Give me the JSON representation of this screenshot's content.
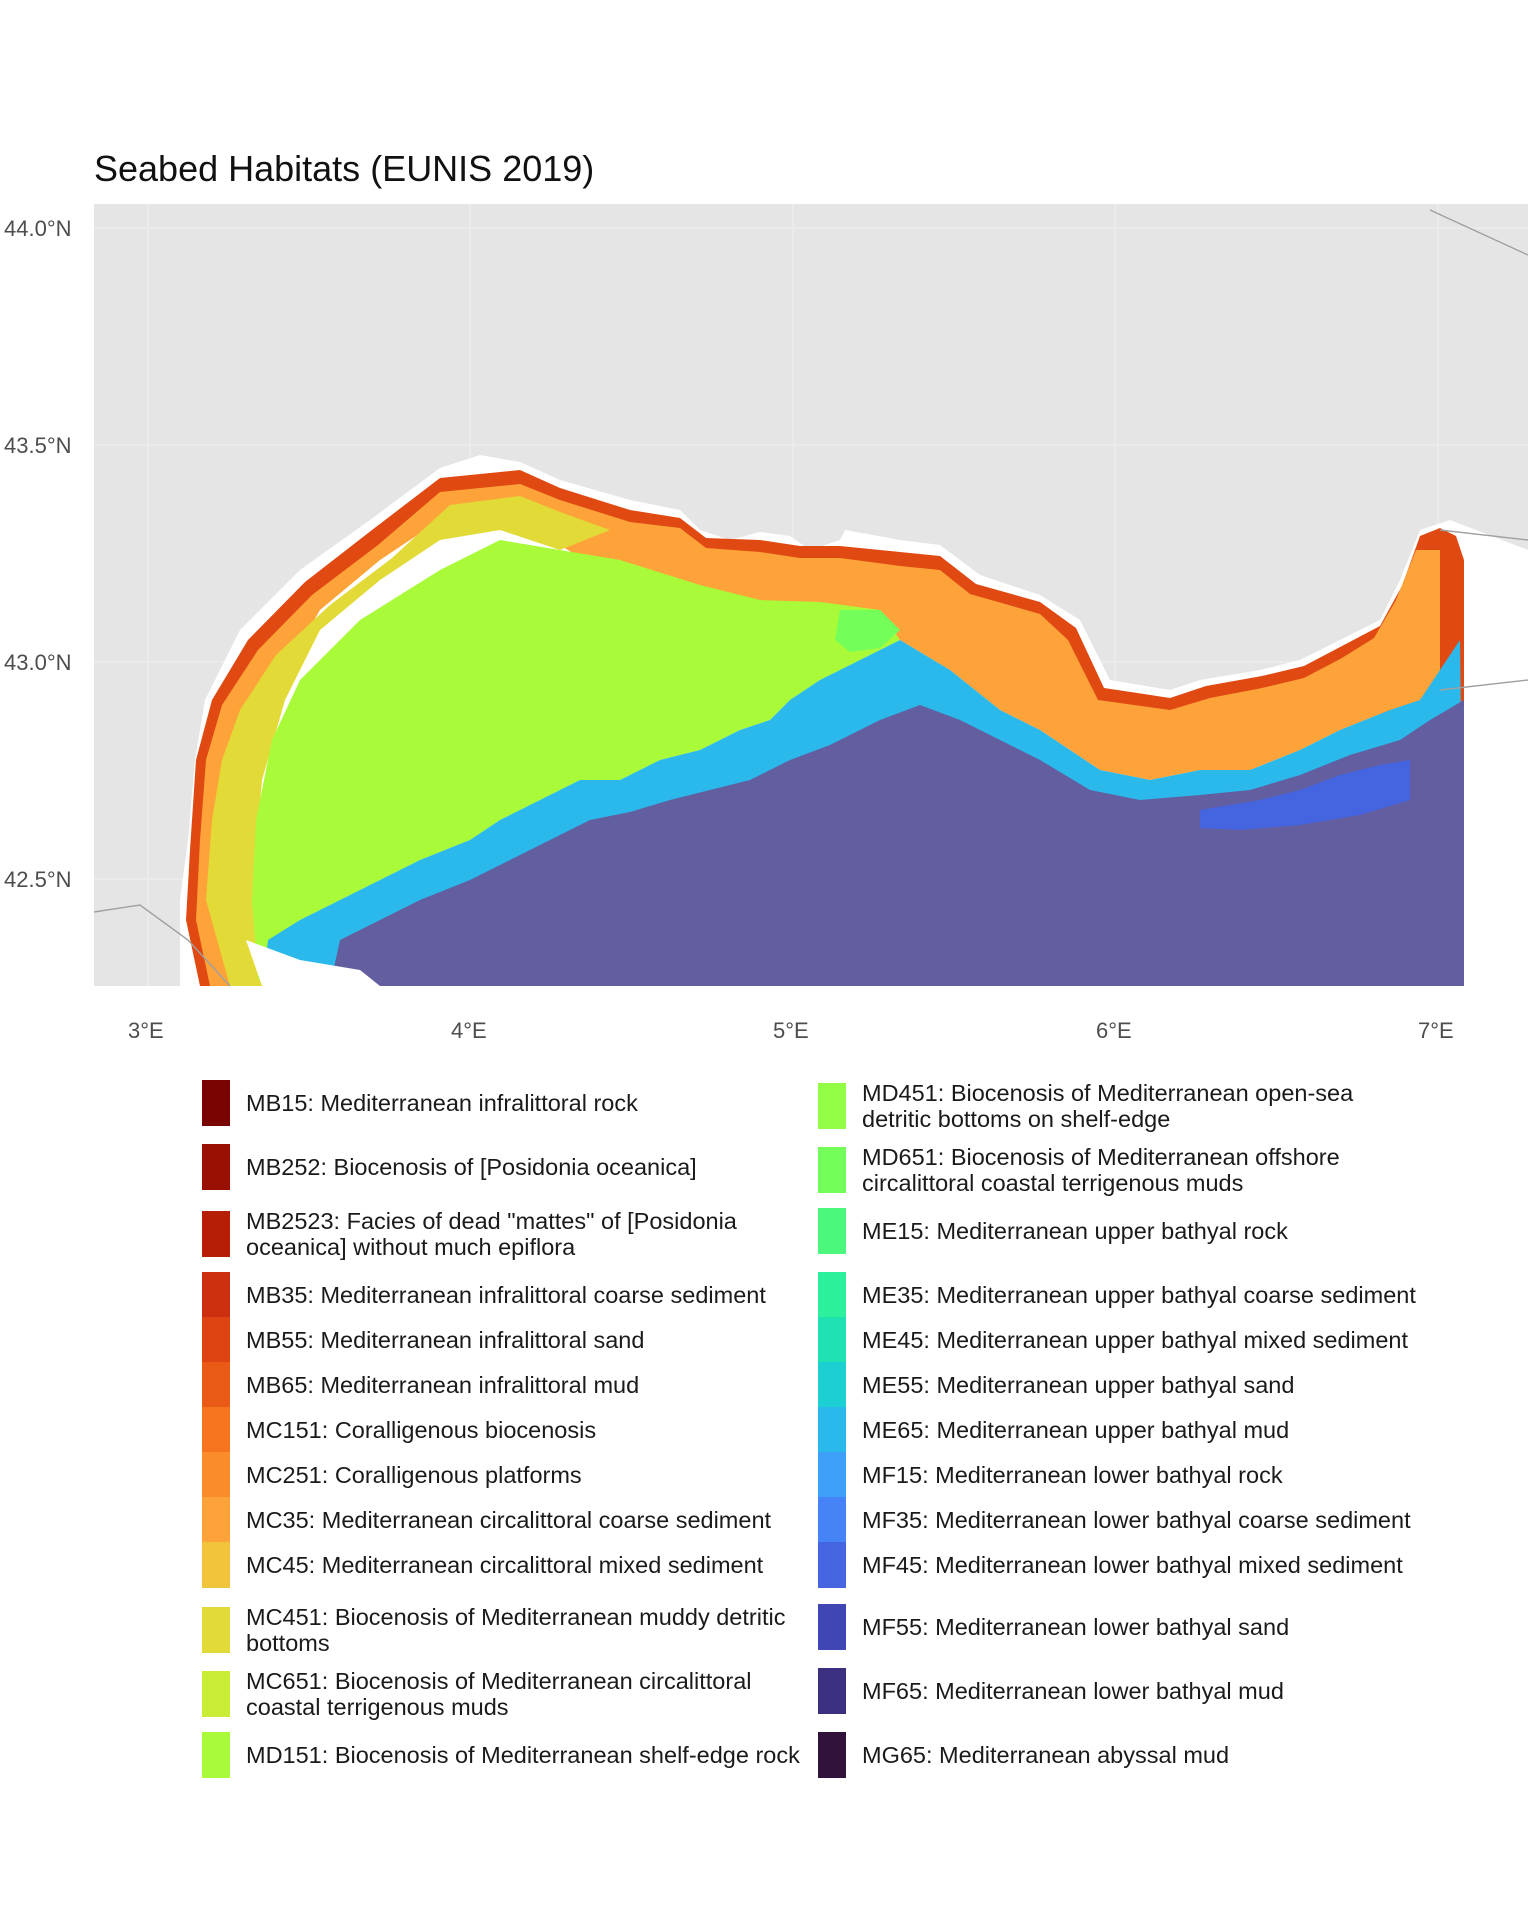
{
  "title": "Seabed Habitats (EUNIS 2019)",
  "map": {
    "y_axis_labels": [
      "44.0°N",
      "43.5°N",
      "43.0°N",
      "42.5°N"
    ],
    "x_axis_labels": [
      "3°E",
      "4°E",
      "5°E",
      "6°E",
      "7°E"
    ],
    "colors": {
      "background": "#ffffff",
      "land": "#e5e5e5",
      "graticule": "#ebebeb",
      "coast_line": "#a0a0a0"
    }
  },
  "legend": {
    "left_column": [
      {
        "label": "MB15: Mediterranean infralittoral rock",
        "color": "#7a0403"
      },
      {
        "label": "MB252: Biocenosis of [Posidonia oceanica]",
        "color": "#9a1002"
      },
      {
        "label": "MB2523: Facies of dead \"mattes\" of [Posidonia oceanica] without much epiflora",
        "color": "#b61f05"
      },
      {
        "label": "MB35: Mediterranean infralittoral coarse sediment",
        "color": "#cb2f0d"
      },
      {
        "label": "MB55: Mediterranean infralittoral sand",
        "color": "#dd4411"
      },
      {
        "label": "MB65: Mediterranean infralittoral mud",
        "color": "#ea5a17"
      },
      {
        "label": "MC151: Coralligenous biocenosis",
        "color": "#f57420"
      },
      {
        "label": "MC251: Coralligenous platforms",
        "color": "#fb8c2b"
      },
      {
        "label": "MC35: Mediterranean circalittoral coarse sediment",
        "color": "#fda33a"
      },
      {
        "label": "MC45: Mediterranean circalittoral mixed sediment",
        "color": "#f2c43b"
      },
      {
        "label": "MC451: Biocenosis of Mediterranean muddy detritic bottoms",
        "color": "#e2da36"
      },
      {
        "label": "MC651: Biocenosis of Mediterranean circalittoral coastal terrigenous muds",
        "color": "#c9ec34"
      },
      {
        "label": "MD151: Biocenosis of Mediterranean shelf-edge rock",
        "color": "#a9fb39"
      }
    ],
    "right_column": [
      {
        "label": "MD451: Biocenosis of Mediterranean open-sea detritic bottoms on shelf-edge",
        "color": "#93fd45"
      },
      {
        "label": "MD651: Biocenosis of Mediterranean offshore circalittoral coastal terrigenous muds",
        "color": "#73fe5a"
      },
      {
        "label": "ME15: Mediterranean upper bathyal rock",
        "color": "#4bf87b"
      },
      {
        "label": "ME35: Mediterranean upper bathyal coarse sediment",
        "color": "#2cf09b"
      },
      {
        "label": "ME45: Mediterranean upper bathyal mixed sediment",
        "color": "#1fe2b3"
      },
      {
        "label": "ME55: Mediterranean upper bathyal sand",
        "color": "#1ccfd3"
      },
      {
        "label": "ME65: Mediterranean upper bathyal mud",
        "color": "#2bb8ea"
      },
      {
        "label": "MF15: Mediterranean lower bathyal rock",
        "color": "#3e9ff8"
      },
      {
        "label": "MF35: Mediterranean lower bathyal coarse sediment",
        "color": "#4683f7"
      },
      {
        "label": "MF45: Mediterranean lower bathyal mixed sediment",
        "color": "#4564e0"
      },
      {
        "label": "MF55: Mediterranean lower bathyal sand",
        "color": "#4146b5"
      },
      {
        "label": "MF65: Mediterranean lower bathyal mud",
        "color": "#3b2f80"
      },
      {
        "label": "MG65: Mediterranean abyssal mud",
        "color": "#30123b"
      }
    ]
  }
}
